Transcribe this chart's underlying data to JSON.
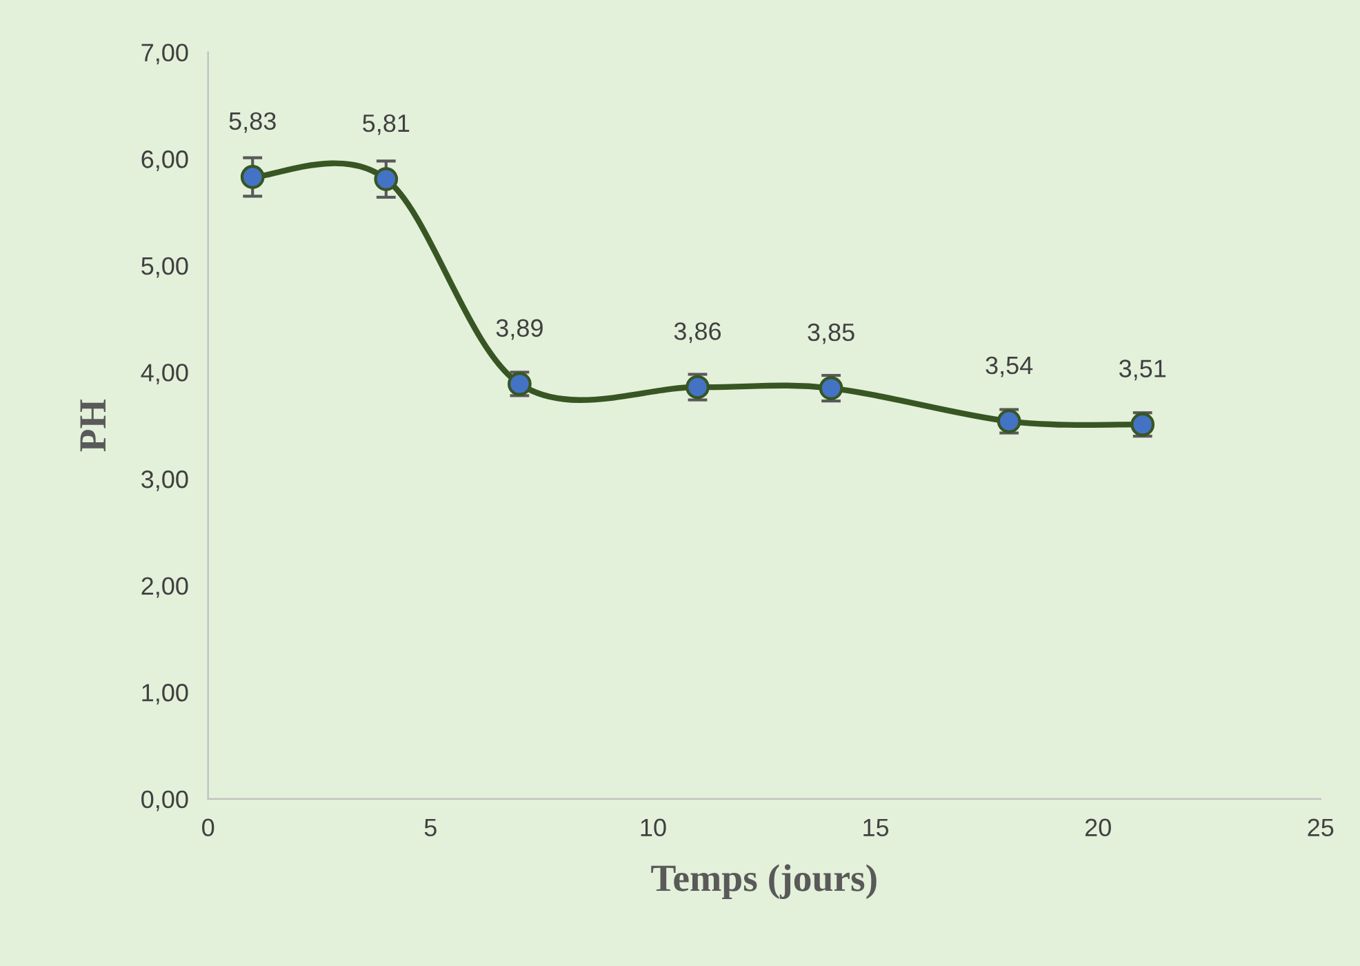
{
  "chart_data": {
    "type": "line",
    "xlabel": "Temps (jours)",
    "ylabel": "PH",
    "x": [
      1,
      4,
      7,
      11,
      14,
      18,
      21
    ],
    "series": [
      {
        "color": "#375623",
        "colors": [
          "#4472c4",
          "#4472c4",
          "#4472c4",
          "#4472c4",
          "#4472c4",
          "#4472c4",
          "#4472c4"
        ],
        "values": [
          5.83,
          5.81,
          3.89,
          3.86,
          3.85,
          3.54,
          3.51
        ],
        "errors": [
          0.18,
          0.17,
          0.11,
          0.12,
          0.12,
          0.11,
          0.11
        ],
        "value_labels": [
          "5,83",
          "5,81",
          "3,89",
          "3,86",
          "3,85",
          "3,54",
          "3,51"
        ]
      }
    ],
    "marker": "circle",
    "line_style": "solid",
    "xlim": [
      0,
      25
    ],
    "xticks": [
      0,
      5,
      10,
      15,
      20,
      25
    ],
    "ylim": [
      0,
      7
    ],
    "yticks": [
      {
        "value": 0,
        "label": "0,00"
      },
      {
        "value": 1,
        "label": "1,00"
      },
      {
        "value": 2,
        "label": "2,00"
      },
      {
        "value": 3,
        "label": "3,00"
      },
      {
        "value": 4,
        "label": "4,00"
      },
      {
        "value": 5,
        "label": "5,00"
      },
      {
        "value": 6,
        "label": "6,00"
      },
      {
        "value": 7,
        "label": "7,00"
      }
    ],
    "grid": false,
    "legend": false
  }
}
